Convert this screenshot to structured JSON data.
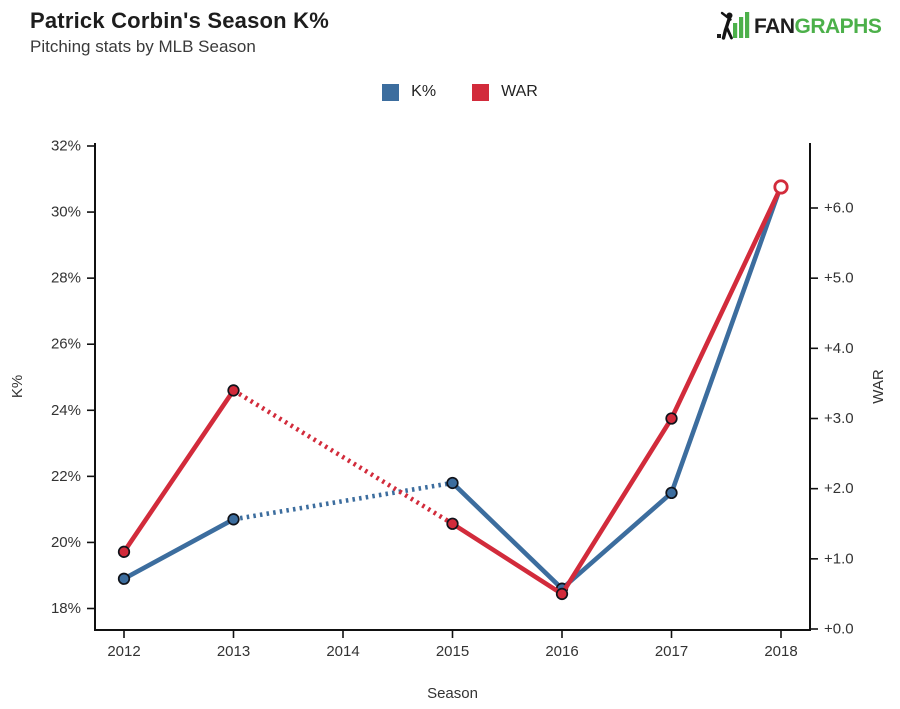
{
  "header": {
    "title": "Patrick Corbin's Season K%",
    "subtitle": "Pitching stats by MLB Season"
  },
  "logo": {
    "fan": "FAN",
    "graphs": "GRAPHS",
    "green": "#4CB04A",
    "dark": "#1E1E1E"
  },
  "legend": {
    "items": [
      {
        "label": "K%",
        "color": "#3C6D9E"
      },
      {
        "label": "WAR",
        "color": "#D22B3B"
      }
    ]
  },
  "chart_data": {
    "type": "line",
    "title": "Patrick Corbin's Season K%",
    "subtitle": "Pitching stats by MLB Season",
    "grid": false,
    "legend_position": "top-center",
    "x_axis": {
      "label": "Season",
      "ticks": [
        {
          "v": 2012,
          "label": "2012"
        },
        {
          "v": 2013,
          "label": "2013"
        },
        {
          "v": 2014,
          "label": "2014"
        },
        {
          "v": 2015,
          "label": "2015"
        },
        {
          "v": 2016,
          "label": "2016"
        },
        {
          "v": 2017,
          "label": "2017"
        },
        {
          "v": 2018,
          "label": "2018"
        }
      ]
    },
    "left_axis": {
      "label": "K%",
      "min": 18,
      "max": 32,
      "ticks": [
        {
          "v": 18,
          "label": "18%"
        },
        {
          "v": 20,
          "label": "20%"
        },
        {
          "v": 22,
          "label": "22%"
        },
        {
          "v": 24,
          "label": "24%"
        },
        {
          "v": 26,
          "label": "26%"
        },
        {
          "v": 28,
          "label": "28%"
        },
        {
          "v": 30,
          "label": "30%"
        },
        {
          "v": 32,
          "label": "32%"
        }
      ]
    },
    "right_axis": {
      "label": "WAR",
      "min": 0,
      "max": 6,
      "ticks": [
        {
          "v": 0,
          "label": "+0.0"
        },
        {
          "v": 1,
          "label": "+1.0"
        },
        {
          "v": 2,
          "label": "+2.0"
        },
        {
          "v": 3,
          "label": "+3.0"
        },
        {
          "v": 4,
          "label": "+4.0"
        },
        {
          "v": 5,
          "label": "+5.0"
        },
        {
          "v": 6,
          "label": "+6.0"
        }
      ]
    },
    "series": [
      {
        "name": "K%",
        "axis": "left",
        "color": "#3C6D9E",
        "marker_outline": "#10131A",
        "dotted_segments": [
          [
            2013,
            2015
          ]
        ],
        "points": [
          {
            "x": 2012,
            "y": 18.9,
            "marker": "filled"
          },
          {
            "x": 2013,
            "y": 20.7,
            "marker": "filled"
          },
          {
            "x": 2015,
            "y": 21.8,
            "marker": "filled"
          },
          {
            "x": 2016,
            "y": 18.6,
            "marker": "filled"
          },
          {
            "x": 2017,
            "y": 21.5,
            "marker": "filled"
          },
          {
            "x": 2018,
            "y": 30.8,
            "marker": "none"
          }
        ]
      },
      {
        "name": "WAR",
        "axis": "right",
        "color": "#D22B3B",
        "marker_outline": "#10131A",
        "dotted_segments": [
          [
            2013,
            2015
          ]
        ],
        "points": [
          {
            "x": 2012,
            "y": 1.1,
            "marker": "filled"
          },
          {
            "x": 2013,
            "y": 3.4,
            "marker": "filled"
          },
          {
            "x": 2015,
            "y": 1.5,
            "marker": "filled"
          },
          {
            "x": 2016,
            "y": 0.5,
            "marker": "filled"
          },
          {
            "x": 2017,
            "y": 3.0,
            "marker": "filled"
          },
          {
            "x": 2018,
            "y": 6.3,
            "marker": "open"
          }
        ]
      }
    ]
  }
}
